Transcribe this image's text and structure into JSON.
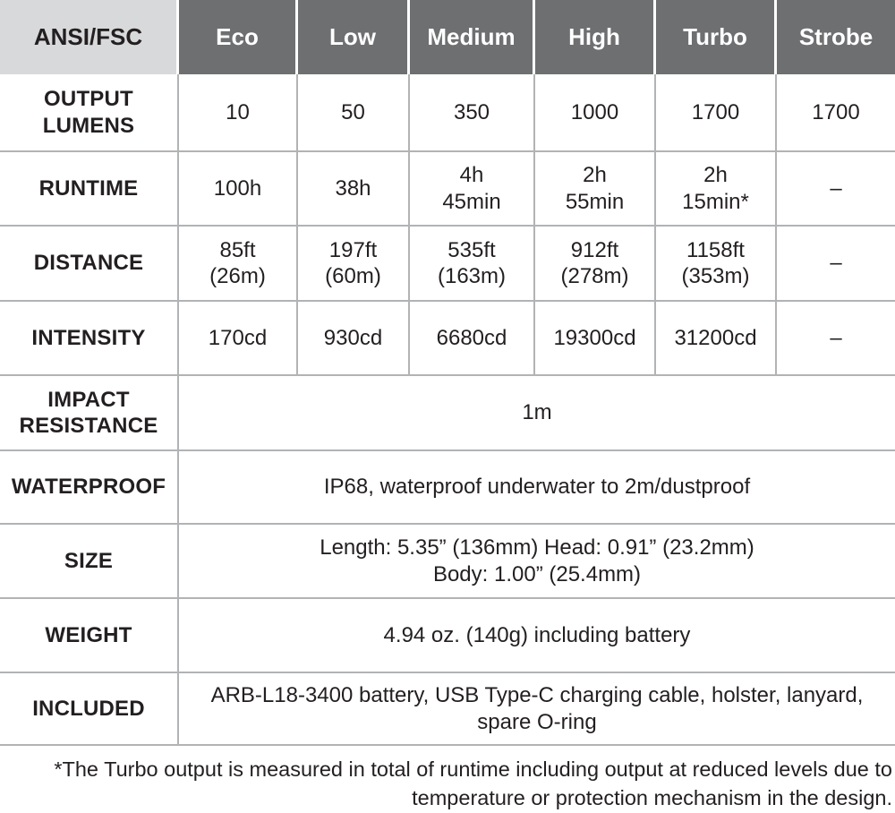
{
  "colors": {
    "header_bg": "#6e6f71",
    "corner_bg": "#d8d9da",
    "grid_line": "#b1b3b5",
    "header_text": "#ffffff",
    "body_text": "#231f20"
  },
  "table": {
    "header": {
      "label": "ANSI/FSC",
      "modes": [
        "Eco",
        "Low",
        "Medium",
        "High",
        "Turbo",
        "Strobe"
      ]
    },
    "rows": [
      {
        "label": "OUTPUT\nLUMENS",
        "values": [
          "10",
          "50",
          "350",
          "1000",
          "1700",
          "1700"
        ]
      },
      {
        "label": "RUNTIME",
        "values": [
          "100h",
          "38h",
          "4h\n45min",
          "2h\n55min",
          "2h\n15min*",
          "–"
        ]
      },
      {
        "label": "DISTANCE",
        "values": [
          "85ft\n(26m)",
          "197ft\n(60m)",
          "535ft\n(163m)",
          "912ft\n(278m)",
          "1158ft\n(353m)",
          "–"
        ]
      },
      {
        "label": "INTENSITY",
        "values": [
          "170cd",
          "930cd",
          "6680cd",
          "19300cd",
          "31200cd",
          "–"
        ]
      }
    ],
    "merged_rows": [
      {
        "label": "IMPACT\nRESISTANCE",
        "value": "1m"
      },
      {
        "label": "WATERPROOF",
        "value": "IP68, waterproof underwater to 2m/dustproof"
      },
      {
        "label": "SIZE",
        "value": "Length: 5.35” (136mm) Head: 0.91” (23.2mm)\nBody: 1.00” (25.4mm)"
      },
      {
        "label": "WEIGHT",
        "value": "4.94 oz. (140g) including battery"
      },
      {
        "label": "INCLUDED",
        "value": "ARB-L18-3400 battery, USB Type-C charging cable, holster, lanyard,\nspare O-ring"
      }
    ]
  },
  "footnote": "*The Turbo output is measured in total of runtime including output at reduced levels due to\ntemperature or protection mechanism in the design."
}
